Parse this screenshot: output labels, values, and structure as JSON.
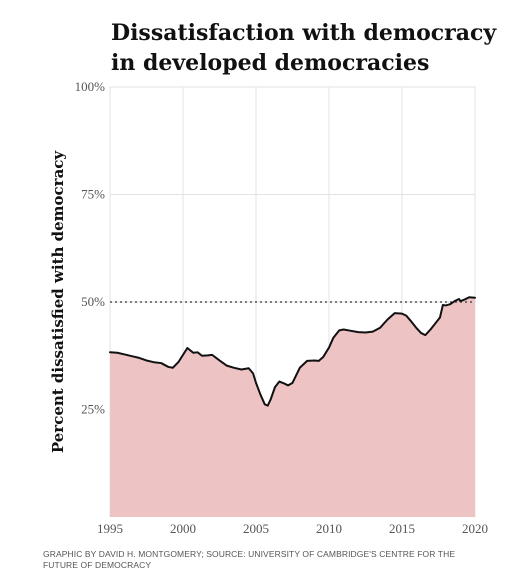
{
  "title_line1": "Dissatisfaction with democracy",
  "title_line2": "in developed democracies",
  "footer_line1": "GRAPHIC BY DAVID H. MONTGOMERY; SOURCE: UNIVERSITY OF CAMBRIDGE'S CENTRE FOR THE",
  "footer_line2": "FUTURE OF DEMOCRACY",
  "colors": {
    "area_fill": "#eec3c4",
    "line": "#111111",
    "grid": "#e3e3e3",
    "reference_line": "#333333"
  },
  "chart_data": {
    "type": "area",
    "title": "Dissatisfaction with democracy in developed democracies",
    "xlabel": "",
    "ylabel": "Percent dissatisfied with democracy",
    "xlim": [
      1995,
      2020
    ],
    "ylim": [
      0,
      100
    ],
    "x_ticks": [
      "1995",
      "2000",
      "2005",
      "2010",
      "2015",
      "2020"
    ],
    "y_ticks": [
      "25%",
      "50%",
      "75%",
      "100%"
    ],
    "grid": true,
    "reference_line": {
      "y": 50,
      "style": "dotted"
    },
    "series": [
      {
        "x": [
          1995.0,
          1995.5,
          1996.0,
          1996.5,
          1997.0,
          1997.5,
          1998.0,
          1998.5,
          1999.0,
          1999.3,
          1999.7,
          2000.0,
          2000.3,
          2000.7,
          2001.0,
          2001.3,
          2001.7,
          2002.0,
          2002.5,
          2003.0,
          2003.5,
          2004.0,
          2004.5,
          2004.8,
          2005.0,
          2005.3,
          2005.6,
          2005.8,
          2006.0,
          2006.3,
          2006.6,
          2006.9,
          2007.2,
          2007.5,
          2008.0,
          2008.5,
          2009.0,
          2009.3,
          2009.6,
          2010.0,
          2010.3,
          2010.7,
          2011.0,
          2011.5,
          2012.0,
          2012.5,
          2013.0,
          2013.5,
          2014.0,
          2014.5,
          2015.0,
          2015.3,
          2015.6,
          2016.0,
          2016.3,
          2016.6,
          2017.0,
          2017.3,
          2017.6,
          2017.8,
          2018.0,
          2018.3,
          2018.6,
          2018.9,
          2019.0,
          2019.3,
          2019.6,
          2020.0
        ],
        "values": [
          38.3,
          38.2,
          37.8,
          37.4,
          37.0,
          36.4,
          36.0,
          35.8,
          34.9,
          34.7,
          36.1,
          37.7,
          39.3,
          38.2,
          38.3,
          37.5,
          37.6,
          37.7,
          36.4,
          35.2,
          34.7,
          34.3,
          34.6,
          33.4,
          31.2,
          28.5,
          26.2,
          25.9,
          27.3,
          30.2,
          31.5,
          31.1,
          30.6,
          31.2,
          34.7,
          36.3,
          36.4,
          36.3,
          37.2,
          39.4,
          41.7,
          43.4,
          43.6,
          43.3,
          43.0,
          42.9,
          43.1,
          44.0,
          45.9,
          47.4,
          47.3,
          46.8,
          45.6,
          43.9,
          42.8,
          42.3,
          43.8,
          45.1,
          46.4,
          49.3,
          49.2,
          49.5,
          50.2,
          50.7,
          50.2,
          50.6,
          51.1,
          51.0
        ]
      }
    ]
  }
}
